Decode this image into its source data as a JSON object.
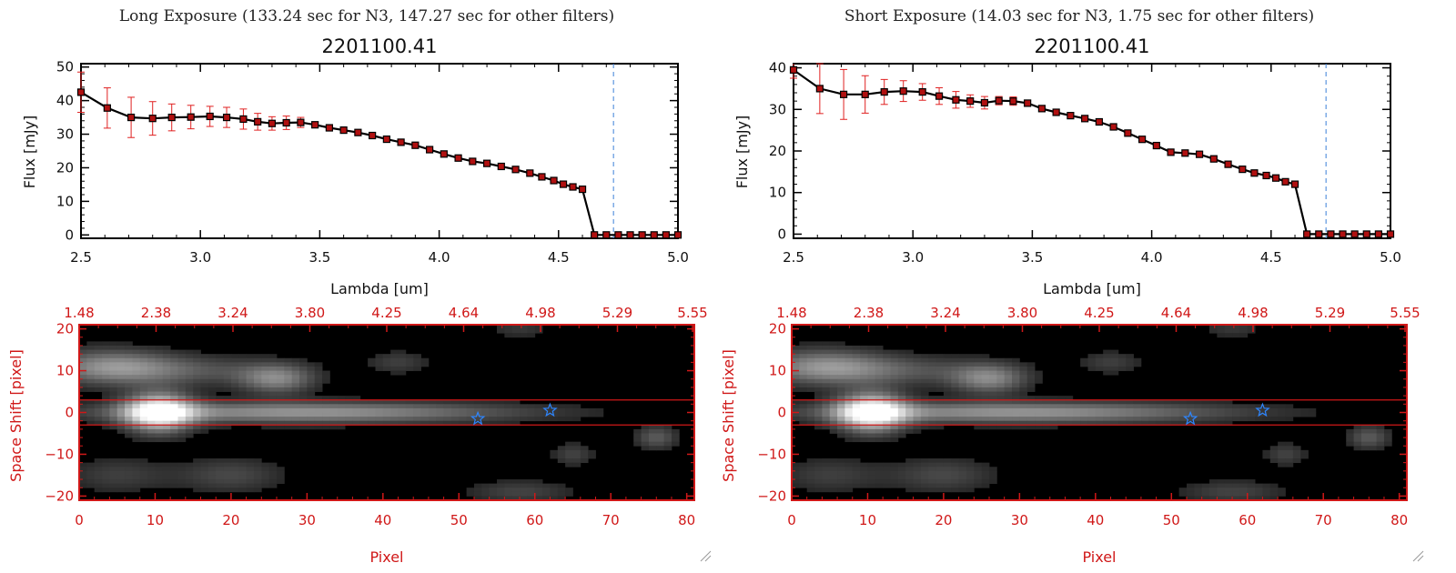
{
  "colors": {
    "line": "#000000",
    "marker": "#b01010",
    "errorbar": "#e02020",
    "cutoff": "#3b7fd8",
    "red_axis": "#d01818",
    "star": "#2e86ff"
  },
  "icons": [
    "star-icon",
    "resize-grip-icon"
  ],
  "panels": [
    {
      "heading": "Long Exposure (133.24 sec for N3, 147.27 sec for other filters)",
      "chart_data": {
        "type": "line",
        "title": "2201100.41",
        "xlabel": "Lambda [um]",
        "ylabel": "Flux [mJy]",
        "xlim": [
          2.5,
          5.0
        ],
        "ylim": [
          -1,
          51
        ],
        "xticks": [
          "2.5",
          "3.0",
          "3.5",
          "4.0",
          "4.5",
          "5.0"
        ],
        "yticks": [
          0,
          10,
          20,
          30,
          40,
          50
        ],
        "cutoff_x": 4.73,
        "grid": false,
        "legend": "none",
        "series": [
          {
            "x": [
              2.5,
              2.61,
              2.71,
              2.8,
              2.88,
              2.96,
              3.04,
              3.11,
              3.18,
              3.24,
              3.3,
              3.36,
              3.42,
              3.48,
              3.54,
              3.6,
              3.66,
              3.72,
              3.78,
              3.84,
              3.9,
              3.96,
              4.02,
              4.08,
              4.14,
              4.2,
              4.26,
              4.32,
              4.38,
              4.43,
              4.48,
              4.52,
              4.56,
              4.6,
              4.65,
              4.7,
              4.75,
              4.8,
              4.85,
              4.9,
              4.95,
              5.0
            ],
            "y": [
              42.5,
              37.8,
              35.0,
              34.7,
              35.0,
              35.1,
              35.3,
              35.0,
              34.5,
              33.7,
              33.2,
              33.4,
              33.5,
              32.8,
              31.9,
              31.2,
              30.5,
              29.6,
              28.5,
              27.6,
              26.7,
              25.4,
              24.1,
              22.9,
              21.9,
              21.3,
              20.4,
              19.5,
              18.4,
              17.3,
              16.2,
              15.1,
              14.3,
              13.6,
              0,
              0,
              0,
              0,
              0,
              0,
              0,
              0
            ],
            "err": [
              6,
              6,
              6,
              5,
              4,
              3.5,
              3,
              3,
              3,
              2.5,
              2,
              2,
              1.5,
              0,
              0,
              0,
              0,
              0,
              0,
              0,
              0,
              0,
              0,
              0,
              0,
              0,
              0,
              0,
              0,
              0,
              0,
              0,
              0,
              0,
              0,
              0,
              0,
              0,
              0,
              0,
              0,
              0
            ]
          }
        ]
      },
      "image_data": {
        "type": "heatmap",
        "xlabel": "Pixel",
        "ylabel": "Space Shift [pixel]",
        "xlim": [
          0,
          81
        ],
        "ylim": [
          -21,
          21
        ],
        "xticks": [
          "0",
          "10",
          "20",
          "30",
          "40",
          "50",
          "60",
          "70",
          "80"
        ],
        "yticks": [
          "20",
          "10",
          "0",
          "−10",
          "−20"
        ],
        "top_ticks": [
          "1.48",
          "2.38",
          "3.24",
          "3.80",
          "4.25",
          "4.64",
          "4.98",
          "5.29",
          "5.55"
        ],
        "aperture": [
          -3,
          3
        ],
        "stars": [
          [
            52.5,
            -1.5
          ],
          [
            62,
            0.5
          ]
        ],
        "sources": [
          {
            "x": 10.5,
            "y": 0,
            "sx": 3.2,
            "sy": 3.2,
            "a": 1.0
          },
          {
            "x": 30,
            "y": 0,
            "sx": 20,
            "sy": 1.8,
            "a": 0.55
          },
          {
            "x": 4,
            "y": 11,
            "sx": 6,
            "sy": 3,
            "a": 0.45
          },
          {
            "x": 26,
            "y": 8,
            "sx": 3.5,
            "sy": 2.5,
            "a": 0.45
          },
          {
            "x": 14,
            "y": 10,
            "sx": 9,
            "sy": 2.5,
            "a": 0.25
          },
          {
            "x": 20,
            "y": -15,
            "sx": 5,
            "sy": 3,
            "a": 0.22
          },
          {
            "x": 5,
            "y": -15,
            "sx": 5,
            "sy": 3,
            "a": 0.18
          },
          {
            "x": 58,
            "y": -19,
            "sx": 5,
            "sy": 2,
            "a": 0.2
          },
          {
            "x": 76,
            "y": -6,
            "sx": 2,
            "sy": 2,
            "a": 0.3
          },
          {
            "x": 65,
            "y": -10,
            "sx": 2,
            "sy": 2,
            "a": 0.2
          },
          {
            "x": 42,
            "y": 12,
            "sx": 3,
            "sy": 2,
            "a": 0.18
          },
          {
            "x": 58,
            "y": 20,
            "sx": 3,
            "sy": 1.5,
            "a": 0.15
          }
        ]
      }
    },
    {
      "heading": "Short Exposure (14.03 sec for N3, 1.75 sec for other filters)",
      "chart_data": {
        "type": "line",
        "title": "2201100.41",
        "xlabel": "Lambda [um]",
        "ylabel": "Flux [mJy]",
        "xlim": [
          2.5,
          5.0
        ],
        "ylim": [
          -1,
          41
        ],
        "xticks": [
          "2.5",
          "3.0",
          "3.5",
          "4.0",
          "4.5",
          "5.0"
        ],
        "yticks": [
          0,
          10,
          20,
          30,
          40
        ],
        "cutoff_x": 4.73,
        "grid": false,
        "legend": "none",
        "series": [
          {
            "x": [
              2.5,
              2.61,
              2.71,
              2.8,
              2.88,
              2.96,
              3.04,
              3.11,
              3.18,
              3.24,
              3.3,
              3.36,
              3.42,
              3.48,
              3.54,
              3.6,
              3.66,
              3.72,
              3.78,
              3.84,
              3.9,
              3.96,
              4.02,
              4.08,
              4.14,
              4.2,
              4.26,
              4.32,
              4.38,
              4.43,
              4.48,
              4.52,
              4.56,
              4.6,
              4.65,
              4.7,
              4.75,
              4.8,
              4.85,
              4.9,
              4.95,
              5.0
            ],
            "y": [
              39.5,
              35.0,
              33.6,
              33.6,
              34.2,
              34.4,
              34.2,
              33.2,
              32.3,
              32.0,
              31.6,
              32.1,
              32.0,
              31.5,
              30.2,
              29.3,
              28.5,
              27.8,
              27.0,
              25.8,
              24.3,
              22.8,
              21.3,
              19.7,
              19.5,
              19.2,
              18.1,
              16.8,
              15.6,
              14.7,
              14.1,
              13.5,
              12.6,
              12.0,
              0,
              0,
              0,
              0,
              0,
              0,
              0,
              0
            ],
            "err": [
              2,
              6,
              6,
              4.5,
              3,
              2.5,
              2,
              2,
              2,
              1.5,
              1.5,
              1,
              1,
              0,
              0,
              0,
              0,
              0,
              0,
              0,
              0,
              0,
              0,
              0,
              0,
              0,
              0,
              0,
              0,
              0,
              0,
              0,
              0,
              0,
              0,
              0,
              0,
              0,
              0,
              0,
              0,
              0
            ]
          }
        ]
      },
      "image_data": {
        "type": "heatmap",
        "xlabel": "Pixel",
        "ylabel": "Space Shift [pixel]",
        "xlim": [
          0,
          81
        ],
        "ylim": [
          -21,
          21
        ],
        "xticks": [
          "0",
          "10",
          "20",
          "30",
          "40",
          "50",
          "60",
          "70",
          "80"
        ],
        "yticks": [
          "20",
          "10",
          "0",
          "−10",
          "−20"
        ],
        "top_ticks": [
          "1.48",
          "2.38",
          "3.24",
          "3.80",
          "4.25",
          "4.64",
          "4.98",
          "5.29",
          "5.55"
        ],
        "aperture": [
          -3,
          3
        ],
        "stars": [
          [
            52.5,
            -1.5
          ],
          [
            62,
            0.5
          ]
        ],
        "sources": [
          {
            "x": 10.5,
            "y": 0,
            "sx": 3.2,
            "sy": 3.2,
            "a": 1.0
          },
          {
            "x": 30,
            "y": 0,
            "sx": 20,
            "sy": 1.8,
            "a": 0.55
          },
          {
            "x": 4,
            "y": 11,
            "sx": 6,
            "sy": 3,
            "a": 0.45
          },
          {
            "x": 26,
            "y": 8,
            "sx": 3.5,
            "sy": 2.5,
            "a": 0.45
          },
          {
            "x": 14,
            "y": 10,
            "sx": 9,
            "sy": 2.5,
            "a": 0.25
          },
          {
            "x": 20,
            "y": -15,
            "sx": 5,
            "sy": 3,
            "a": 0.22
          },
          {
            "x": 5,
            "y": -15,
            "sx": 5,
            "sy": 3,
            "a": 0.18
          },
          {
            "x": 58,
            "y": -19,
            "sx": 5,
            "sy": 2,
            "a": 0.2
          },
          {
            "x": 76,
            "y": -6,
            "sx": 2,
            "sy": 2,
            "a": 0.3
          },
          {
            "x": 65,
            "y": -10,
            "sx": 2,
            "sy": 2,
            "a": 0.2
          },
          {
            "x": 42,
            "y": 12,
            "sx": 3,
            "sy": 2,
            "a": 0.18
          },
          {
            "x": 58,
            "y": 20,
            "sx": 3,
            "sy": 1.5,
            "a": 0.15
          }
        ]
      }
    }
  ]
}
